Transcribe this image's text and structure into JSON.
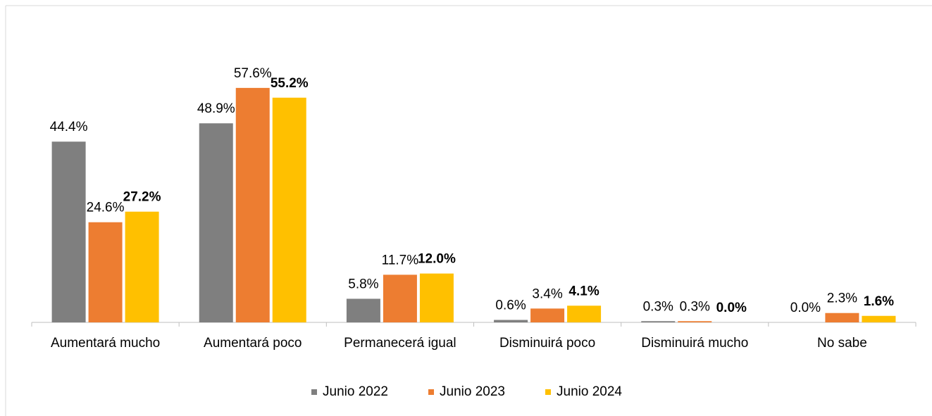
{
  "chart_data": {
    "type": "bar",
    "categories": [
      "Aumentará mucho",
      "Aumentará poco",
      "Permanecerá igual",
      "Disminuirá poco",
      "Disminuirá mucho",
      "No sabe"
    ],
    "series": [
      {
        "name": "Junio 2022",
        "color": "#7f7f7f",
        "values": [
          44.4,
          48.9,
          5.8,
          0.6,
          0.3,
          0.0
        ],
        "value_labels": [
          "44.4%",
          "48.9%",
          "5.8%",
          "0.6%",
          "0.3%",
          "0.0%"
        ],
        "label_bold": false
      },
      {
        "name": "Junio 2023",
        "color": "#ed7d31",
        "values": [
          24.6,
          57.6,
          11.7,
          3.4,
          0.3,
          2.3
        ],
        "value_labels": [
          "24.6%",
          "57.6%",
          "11.7%",
          "3.4%",
          "0.3%",
          "2.3%"
        ],
        "label_bold": false
      },
      {
        "name": "Junio 2024",
        "color": "#ffc000",
        "values": [
          27.2,
          55.2,
          12.0,
          4.1,
          0.0,
          1.6
        ],
        "value_labels": [
          "27.2%",
          "55.2%",
          "12.0%",
          "4.1%",
          "0.0%",
          "1.6%"
        ],
        "label_bold": true
      }
    ],
    "ylim": [
      0,
      60
    ],
    "legend": "bottom"
  }
}
